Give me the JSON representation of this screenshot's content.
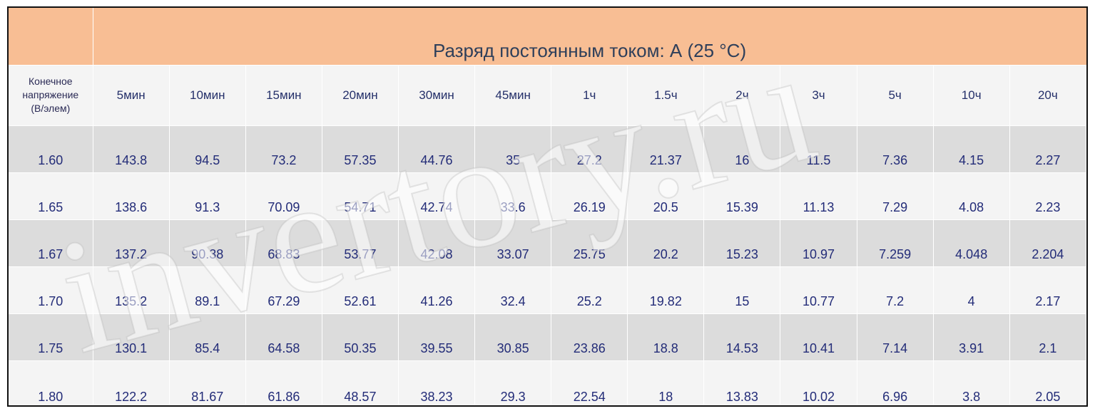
{
  "table": {
    "title": "Разряд постоянным током: А (25 °C)",
    "first_header_lines": [
      "Конечное",
      "напряжение",
      "(В/элем)"
    ],
    "columns": [
      "5мин",
      "10мин",
      "15мин",
      "20мин",
      "30мин",
      "45мин",
      "1ч",
      "1.5ч",
      "2ч",
      "3ч",
      "5ч",
      "10ч",
      "20ч"
    ],
    "rows": [
      {
        "voltage": "1.60",
        "values": [
          "143.8",
          "94.5",
          "73.2",
          "57.35",
          "44.76",
          "35",
          "27.2",
          "21.37",
          "16",
          "11.5",
          "7.36",
          "4.15",
          "2.27"
        ]
      },
      {
        "voltage": "1.65",
        "values": [
          "138.6",
          "91.3",
          "70.09",
          "54.71",
          "42.74",
          "33.6",
          "26.19",
          "20.5",
          "15.39",
          "11.13",
          "7.29",
          "4.08",
          "2.23"
        ]
      },
      {
        "voltage": "1.67",
        "values": [
          "137.2",
          "90.38",
          "68.83",
          "53.77",
          "42.08",
          "33.07",
          "25.75",
          "20.2",
          "15.23",
          "10.97",
          "7.259",
          "4.048",
          "2.204"
        ]
      },
      {
        "voltage": "1.70",
        "values": [
          "135.2",
          "89.1",
          "67.29",
          "52.61",
          "41.26",
          "32.4",
          "25.2",
          "19.82",
          "15",
          "10.77",
          "7.2",
          "4",
          "2.17"
        ]
      },
      {
        "voltage": "1.75",
        "values": [
          "130.1",
          "85.4",
          "64.58",
          "50.35",
          "39.55",
          "30.85",
          "23.86",
          "18.8",
          "14.53",
          "10.41",
          "7.14",
          "3.91",
          "2.1"
        ]
      },
      {
        "voltage": "1.80",
        "values": [
          "122.2",
          "81.67",
          "61.86",
          "48.57",
          "38.23",
          "29.3",
          "22.54",
          "18",
          "13.83",
          "10.02",
          "6.96",
          "3.8",
          "2.05"
        ]
      }
    ]
  },
  "watermark": {
    "text": "invertory.ru",
    "color": "#ffffff"
  },
  "colors": {
    "title_band": "#f8be94",
    "title_text": "#2e3f5a",
    "row_dark": "#dcdcdc",
    "row_light": "#f4f4f4",
    "cell_text": "#232c78"
  }
}
